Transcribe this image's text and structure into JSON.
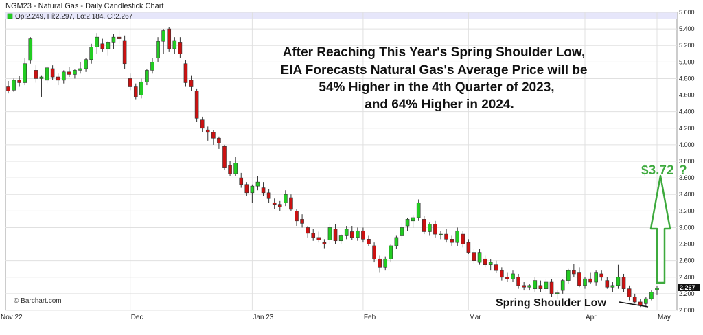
{
  "header": {
    "title": "NGM23 - Natural Gas - Daily Candlestick Chart",
    "ohlc": "Op:2.249, Hi:2.297, Lo:2.184, Cl:2.267"
  },
  "copyright": "© Barchart.com",
  "annotation": {
    "line1": "After Reaching This Year's Spring Shoulder Low,",
    "line2": "EIA Forecasts Natural Gas's Average Price will be",
    "line3": "54% Higher in the 4th Quarter of 2023,",
    "line4": "and 64% Higher in 2024."
  },
  "target_label": "$3.72",
  "target_question": "?",
  "low_label": "Spring Shoulder Low",
  "last_price_label": "2.267",
  "colors": {
    "up": "#22cc22",
    "down": "#cc1111",
    "grid": "#e0e0e0",
    "header_bg": "#e6e6fa",
    "arrow": "#3daa3d"
  },
  "chart_data": {
    "type": "candlestick",
    "title": "NGM23 - Natural Gas - Daily Candlestick Chart",
    "xlabel": "",
    "ylabel": "",
    "ylim": [
      2.0,
      5.6
    ],
    "y_ticks": [
      "2.000",
      "2.200",
      "2.400",
      "2.600",
      "2.800",
      "3.000",
      "3.200",
      "3.400",
      "3.600",
      "3.800",
      "4.000",
      "4.200",
      "4.400",
      "4.600",
      "4.800",
      "5.000",
      "5.200",
      "5.400",
      "5.600"
    ],
    "x_ticks": [
      "Nov 22",
      "Dec",
      "Jan 23",
      "Feb",
      "Mar",
      "Apr",
      "May"
    ],
    "grid": true,
    "series": [
      {
        "name": "NGM23",
        "values": [
          [
            4.7,
            4.77,
            4.62,
            4.65
          ],
          [
            4.66,
            4.8,
            4.64,
            4.78
          ],
          [
            4.78,
            4.83,
            4.7,
            4.75
          ],
          [
            4.75,
            5.05,
            4.72,
            4.98
          ],
          [
            5.02,
            5.3,
            4.98,
            5.28
          ],
          [
            4.9,
            4.96,
            4.75,
            4.8
          ],
          [
            4.8,
            4.84,
            4.58,
            4.82
          ],
          [
            4.78,
            4.95,
            4.74,
            4.93
          ],
          [
            4.92,
            4.96,
            4.78,
            4.82
          ],
          [
            4.82,
            4.86,
            4.72,
            4.78
          ],
          [
            4.78,
            4.9,
            4.74,
            4.88
          ],
          [
            4.88,
            4.94,
            4.82,
            4.85
          ],
          [
            4.85,
            4.91,
            4.8,
            4.9
          ],
          [
            4.9,
            5.0,
            4.86,
            4.92
          ],
          [
            4.92,
            5.05,
            4.88,
            5.03
          ],
          [
            5.03,
            5.22,
            4.98,
            5.18
          ],
          [
            5.18,
            5.35,
            5.1,
            5.3
          ],
          [
            5.22,
            5.28,
            5.12,
            5.16
          ],
          [
            5.16,
            5.26,
            5.08,
            5.24
          ],
          [
            5.24,
            5.34,
            5.16,
            5.3
          ],
          [
            5.3,
            5.38,
            5.22,
            5.28
          ],
          [
            5.26,
            5.32,
            4.92,
            4.98
          ],
          [
            4.8,
            4.86,
            4.66,
            4.7
          ],
          [
            4.7,
            4.74,
            4.55,
            4.58
          ],
          [
            4.6,
            4.8,
            4.56,
            4.76
          ],
          [
            4.76,
            4.92,
            4.72,
            4.9
          ],
          [
            4.9,
            5.05,
            4.86,
            5.0
          ],
          [
            5.05,
            5.3,
            5.0,
            5.25
          ],
          [
            5.25,
            5.4,
            5.1,
            5.38
          ],
          [
            5.4,
            5.42,
            5.12,
            5.16
          ],
          [
            5.16,
            5.3,
            5.1,
            5.26
          ],
          [
            5.24,
            5.3,
            5.05,
            5.1
          ],
          [
            4.98,
            5.02,
            4.7,
            4.75
          ],
          [
            4.78,
            4.84,
            4.65,
            4.7
          ],
          [
            4.65,
            4.68,
            4.28,
            4.32
          ],
          [
            4.3,
            4.34,
            4.15,
            4.2
          ],
          [
            4.18,
            4.22,
            4.05,
            4.15
          ],
          [
            4.15,
            4.18,
            4.0,
            4.08
          ],
          [
            4.08,
            4.1,
            3.95,
            4.02
          ],
          [
            3.98,
            4.0,
            3.7,
            3.72
          ],
          [
            3.75,
            3.8,
            3.62,
            3.65
          ],
          [
            3.65,
            3.85,
            3.62,
            3.78
          ],
          [
            3.6,
            3.66,
            3.48,
            3.52
          ],
          [
            3.52,
            3.55,
            3.38,
            3.42
          ],
          [
            3.42,
            3.52,
            3.3,
            3.5
          ],
          [
            3.5,
            3.62,
            3.45,
            3.55
          ],
          [
            3.48,
            3.55,
            3.38,
            3.42
          ],
          [
            3.42,
            3.46,
            3.3,
            3.35
          ],
          [
            3.3,
            3.35,
            3.22,
            3.28
          ],
          [
            3.28,
            3.32,
            3.2,
            3.25
          ],
          [
            3.3,
            3.45,
            3.26,
            3.4
          ],
          [
            3.36,
            3.4,
            3.2,
            3.22
          ],
          [
            3.2,
            3.22,
            3.02,
            3.08
          ],
          [
            3.1,
            3.16,
            3.0,
            3.05
          ],
          [
            3.0,
            3.02,
            2.88,
            2.93
          ],
          [
            2.93,
            2.98,
            2.84,
            2.88
          ],
          [
            2.88,
            2.95,
            2.82,
            2.85
          ],
          [
            2.82,
            2.86,
            2.75,
            2.8
          ],
          [
            2.85,
            3.05,
            2.8,
            3.0
          ],
          [
            2.98,
            3.04,
            2.8,
            2.84
          ],
          [
            2.84,
            2.92,
            2.8,
            2.9
          ],
          [
            2.9,
            3.02,
            2.86,
            2.98
          ],
          [
            2.95,
            3.02,
            2.85,
            2.88
          ],
          [
            2.88,
            3.0,
            2.84,
            2.96
          ],
          [
            2.96,
            3.0,
            2.82,
            2.86
          ],
          [
            2.86,
            2.9,
            2.78,
            2.8
          ],
          [
            2.78,
            2.82,
            2.58,
            2.62
          ],
          [
            2.62,
            2.66,
            2.46,
            2.52
          ],
          [
            2.52,
            2.65,
            2.48,
            2.62
          ],
          [
            2.62,
            2.8,
            2.58,
            2.78
          ],
          [
            2.78,
            2.9,
            2.74,
            2.88
          ],
          [
            2.9,
            3.05,
            2.86,
            3.0
          ],
          [
            3.02,
            3.12,
            2.96,
            3.1
          ],
          [
            3.08,
            3.15,
            3.0,
            3.12
          ],
          [
            3.12,
            3.34,
            3.08,
            3.3
          ],
          [
            3.1,
            3.14,
            2.92,
            2.95
          ],
          [
            2.95,
            3.06,
            2.9,
            3.04
          ],
          [
            3.04,
            3.08,
            2.88,
            2.92
          ],
          [
            2.92,
            2.96,
            2.86,
            2.92
          ],
          [
            2.92,
            2.98,
            2.82,
            2.86
          ],
          [
            2.86,
            2.9,
            2.78,
            2.82
          ],
          [
            2.82,
            3.0,
            2.78,
            2.96
          ],
          [
            2.92,
            2.96,
            2.76,
            2.8
          ],
          [
            2.82,
            2.86,
            2.68,
            2.7
          ],
          [
            2.7,
            2.74,
            2.56,
            2.6
          ],
          [
            2.58,
            2.74,
            2.55,
            2.7
          ],
          [
            2.62,
            2.66,
            2.52,
            2.55
          ],
          [
            2.55,
            2.62,
            2.48,
            2.58
          ],
          [
            2.55,
            2.6,
            2.45,
            2.48
          ],
          [
            2.48,
            2.52,
            2.36,
            2.4
          ],
          [
            2.4,
            2.46,
            2.34,
            2.38
          ],
          [
            2.38,
            2.48,
            2.34,
            2.44
          ],
          [
            2.4,
            2.44,
            2.26,
            2.3
          ],
          [
            2.3,
            2.34,
            2.24,
            2.28
          ],
          [
            2.28,
            2.32,
            2.24,
            2.3
          ],
          [
            2.26,
            2.4,
            2.22,
            2.36
          ],
          [
            2.3,
            2.36,
            2.22,
            2.26
          ],
          [
            2.26,
            2.38,
            2.22,
            2.34
          ],
          [
            2.34,
            2.38,
            2.16,
            2.2
          ],
          [
            2.2,
            2.24,
            2.14,
            2.21
          ],
          [
            2.24,
            2.38,
            2.2,
            2.36
          ],
          [
            2.36,
            2.5,
            2.32,
            2.48
          ],
          [
            2.48,
            2.56,
            2.4,
            2.44
          ],
          [
            2.46,
            2.52,
            2.28,
            2.3
          ],
          [
            2.3,
            2.4,
            2.26,
            2.38
          ],
          [
            2.38,
            2.46,
            2.32,
            2.34
          ],
          [
            2.34,
            2.48,
            2.3,
            2.46
          ],
          [
            2.44,
            2.48,
            2.36,
            2.4
          ],
          [
            2.36,
            2.4,
            2.26,
            2.28
          ],
          [
            2.28,
            2.34,
            2.22,
            2.3
          ],
          [
            2.3,
            2.55,
            2.26,
            2.4
          ],
          [
            2.4,
            2.44,
            2.22,
            2.26
          ],
          [
            2.26,
            2.3,
            2.12,
            2.16
          ],
          [
            2.16,
            2.2,
            2.08,
            2.1
          ],
          [
            2.1,
            2.14,
            2.04,
            2.06
          ],
          [
            2.08,
            2.16,
            2.04,
            2.14
          ],
          [
            2.14,
            2.24,
            2.12,
            2.22
          ],
          [
            2.249,
            2.297,
            2.184,
            2.267
          ]
        ]
      }
    ],
    "annotations": [
      "After Reaching This Year's Spring Shoulder Low,",
      "EIA Forecasts Natural Gas's Average Price will be",
      "54% Higher in the 4th Quarter of 2023,",
      "and 64% Higher in 2024.",
      "$3.72",
      "?",
      "Spring Shoulder Low"
    ],
    "target_price": 3.72
  }
}
